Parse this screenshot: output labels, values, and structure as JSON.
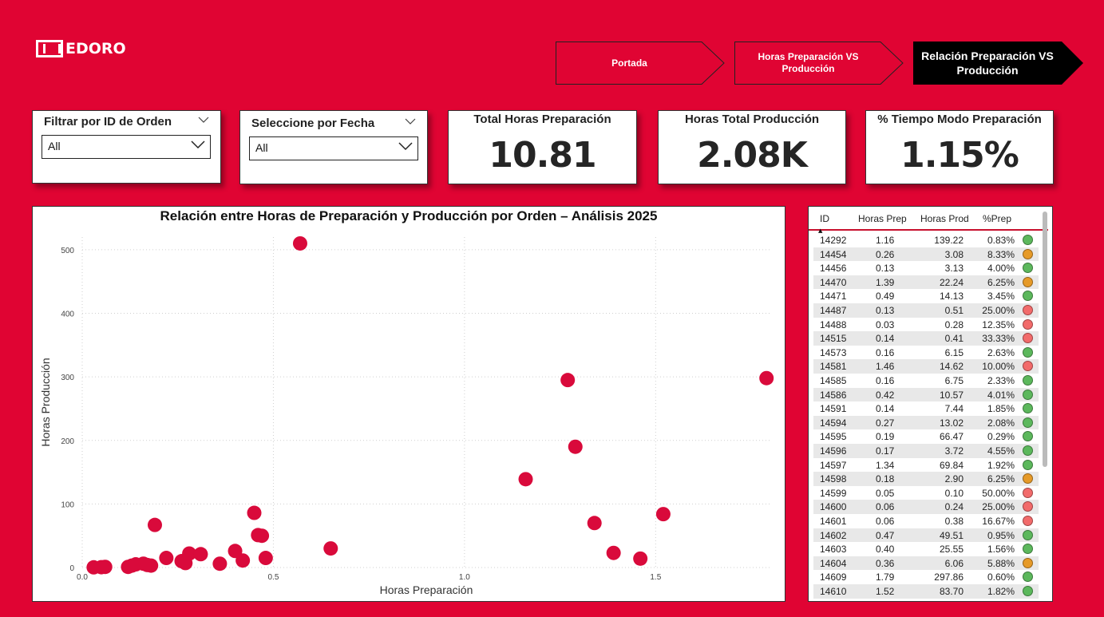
{
  "brand": {
    "logo_text": "EDORO"
  },
  "nav": {
    "items": [
      {
        "label": "Portada",
        "active": false
      },
      {
        "label": "Horas Preparación VS Producción",
        "active": false
      },
      {
        "label": "Relación Preparación VS Producción",
        "active": true
      }
    ]
  },
  "filters": {
    "order": {
      "title": "Filtrar por ID de Orden",
      "value": "All"
    },
    "date": {
      "title": "Seleccione por Fecha",
      "value": "All"
    }
  },
  "kpis": [
    {
      "title": "Total Horas Preparación",
      "value": "10.81"
    },
    {
      "title": "Horas Total Producción",
      "value": "2.08K"
    },
    {
      "title": "% Tiempo Modo Preparación",
      "value": "1.15%"
    }
  ],
  "colors": {
    "accent": "#e00433",
    "dot": "#d90a3b",
    "green": "#5cb85c",
    "orange": "#e69a28",
    "red": "#f26b6b"
  },
  "chart_data": {
    "type": "scatter",
    "title": "Relación entre Horas de Preparación y Producción por Orden – Análisis 2025",
    "xlabel": "Horas Preparación",
    "ylabel": "Horas Producción",
    "xlim": [
      0,
      1.8
    ],
    "ylim": [
      0,
      520
    ],
    "x_ticks": [
      "0.0",
      "0.5",
      "1.0",
      "1.5"
    ],
    "y_ticks": [
      "0",
      "100",
      "200",
      "300",
      "400",
      "500"
    ],
    "grid": true,
    "points": [
      {
        "x": 0.57,
        "y": 510
      },
      {
        "x": 1.79,
        "y": 298
      },
      {
        "x": 1.27,
        "y": 295
      },
      {
        "x": 1.29,
        "y": 190
      },
      {
        "x": 1.16,
        "y": 139
      },
      {
        "x": 0.45,
        "y": 86
      },
      {
        "x": 1.52,
        "y": 84
      },
      {
        "x": 1.34,
        "y": 70
      },
      {
        "x": 0.19,
        "y": 67
      },
      {
        "x": 0.46,
        "y": 51
      },
      {
        "x": 0.47,
        "y": 50
      },
      {
        "x": 0.65,
        "y": 30
      },
      {
        "x": 0.4,
        "y": 26
      },
      {
        "x": 1.39,
        "y": 23
      },
      {
        "x": 0.28,
        "y": 22
      },
      {
        "x": 0.31,
        "y": 21
      },
      {
        "x": 0.22,
        "y": 15
      },
      {
        "x": 0.48,
        "y": 15
      },
      {
        "x": 1.46,
        "y": 14
      },
      {
        "x": 0.42,
        "y": 11
      },
      {
        "x": 0.26,
        "y": 10
      },
      {
        "x": 0.27,
        "y": 7
      },
      {
        "x": 0.36,
        "y": 6
      },
      {
        "x": 0.16,
        "y": 6
      },
      {
        "x": 0.14,
        "y": 5
      },
      {
        "x": 0.13,
        "y": 3
      },
      {
        "x": 0.17,
        "y": 4
      },
      {
        "x": 0.18,
        "y": 3
      },
      {
        "x": 0.06,
        "y": 1
      },
      {
        "x": 0.05,
        "y": 0.5
      },
      {
        "x": 0.03,
        "y": 0.3
      },
      {
        "x": 0.12,
        "y": 1
      }
    ]
  },
  "table": {
    "headers": [
      "ID",
      "Horas Prep",
      "Horas Prod",
      "%Prep"
    ],
    "rows": [
      {
        "id": "14292",
        "prep": "1.16",
        "prod": "139.22",
        "pct": "0.83%",
        "status": "green"
      },
      {
        "id": "14454",
        "prep": "0.26",
        "prod": "3.08",
        "pct": "8.33%",
        "status": "orange"
      },
      {
        "id": "14456",
        "prep": "0.13",
        "prod": "3.13",
        "pct": "4.00%",
        "status": "green"
      },
      {
        "id": "14470",
        "prep": "1.39",
        "prod": "22.24",
        "pct": "6.25%",
        "status": "orange"
      },
      {
        "id": "14471",
        "prep": "0.49",
        "prod": "14.13",
        "pct": "3.45%",
        "status": "green"
      },
      {
        "id": "14487",
        "prep": "0.13",
        "prod": "0.51",
        "pct": "25.00%",
        "status": "red"
      },
      {
        "id": "14488",
        "prep": "0.03",
        "prod": "0.28",
        "pct": "12.35%",
        "status": "red"
      },
      {
        "id": "14515",
        "prep": "0.14",
        "prod": "0.41",
        "pct": "33.33%",
        "status": "red"
      },
      {
        "id": "14573",
        "prep": "0.16",
        "prod": "6.15",
        "pct": "2.63%",
        "status": "green"
      },
      {
        "id": "14581",
        "prep": "1.46",
        "prod": "14.62",
        "pct": "10.00%",
        "status": "red"
      },
      {
        "id": "14585",
        "prep": "0.16",
        "prod": "6.75",
        "pct": "2.33%",
        "status": "green"
      },
      {
        "id": "14586",
        "prep": "0.42",
        "prod": "10.57",
        "pct": "4.01%",
        "status": "green"
      },
      {
        "id": "14591",
        "prep": "0.14",
        "prod": "7.44",
        "pct": "1.85%",
        "status": "green"
      },
      {
        "id": "14594",
        "prep": "0.27",
        "prod": "13.02",
        "pct": "2.08%",
        "status": "green"
      },
      {
        "id": "14595",
        "prep": "0.19",
        "prod": "66.47",
        "pct": "0.29%",
        "status": "green"
      },
      {
        "id": "14596",
        "prep": "0.17",
        "prod": "3.72",
        "pct": "4.55%",
        "status": "green"
      },
      {
        "id": "14597",
        "prep": "1.34",
        "prod": "69.84",
        "pct": "1.92%",
        "status": "green"
      },
      {
        "id": "14598",
        "prep": "0.18",
        "prod": "2.90",
        "pct": "6.25%",
        "status": "orange"
      },
      {
        "id": "14599",
        "prep": "0.05",
        "prod": "0.10",
        "pct": "50.00%",
        "status": "red"
      },
      {
        "id": "14600",
        "prep": "0.06",
        "prod": "0.24",
        "pct": "25.00%",
        "status": "red"
      },
      {
        "id": "14601",
        "prep": "0.06",
        "prod": "0.38",
        "pct": "16.67%",
        "status": "red"
      },
      {
        "id": "14602",
        "prep": "0.47",
        "prod": "49.51",
        "pct": "0.95%",
        "status": "green"
      },
      {
        "id": "14603",
        "prep": "0.40",
        "prod": "25.55",
        "pct": "1.56%",
        "status": "green"
      },
      {
        "id": "14604",
        "prep": "0.36",
        "prod": "6.06",
        "pct": "5.88%",
        "status": "orange"
      },
      {
        "id": "14609",
        "prep": "1.79",
        "prod": "297.86",
        "pct": "0.60%",
        "status": "green"
      },
      {
        "id": "14610",
        "prep": "1.52",
        "prod": "83.70",
        "pct": "1.82%",
        "status": "green"
      }
    ]
  }
}
